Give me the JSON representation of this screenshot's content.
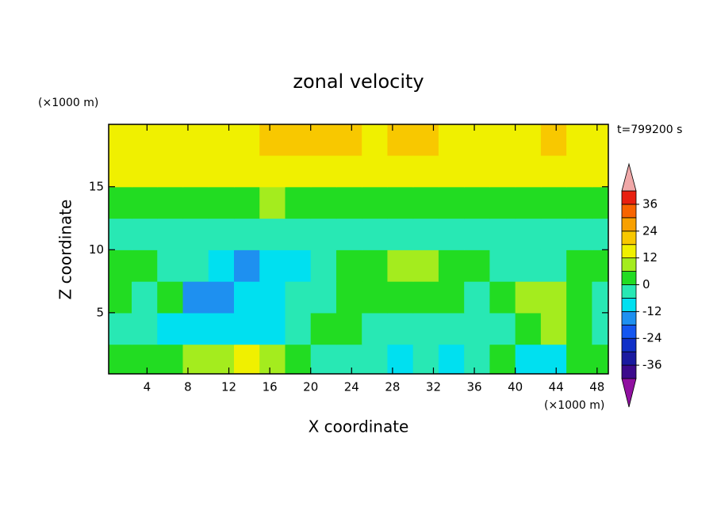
{
  "chart_data": {
    "type": "contour",
    "title": "zonal velocity",
    "x_label": "X coordinate",
    "y_label": "Z coordinate",
    "x_unit": "(×1000 m)",
    "y_unit": "(×1000 m)",
    "annotation": "t=799200 s",
    "x": [
      1.25,
      3.75,
      6.25,
      8.75,
      11.25,
      13.75,
      16.25,
      18.75,
      21.25,
      23.75,
      26.25,
      28.75,
      31.25,
      33.75,
      36.25,
      38.75,
      41.25,
      43.75,
      46.25,
      48.75
    ],
    "y": [
      1.25,
      3.75,
      6.25,
      8.75,
      11.25,
      13.75,
      16.25,
      18.75
    ],
    "values": [
      [
        2,
        3,
        5,
        8,
        10,
        12,
        8,
        3,
        -2,
        -3,
        -5,
        -8,
        -6,
        -10,
        -4,
        0,
        -12,
        -8,
        2,
        4
      ],
      [
        -5,
        -6,
        -8,
        -10,
        -9,
        -8,
        -7,
        -5,
        2,
        4,
        -2,
        -4,
        -3,
        -5,
        -3,
        -2,
        5,
        6,
        2,
        -3
      ],
      [
        0,
        -3,
        3,
        -16,
        -18,
        -12,
        -9,
        -6,
        -3,
        2,
        3,
        4,
        5,
        4,
        -2,
        2,
        8,
        9,
        4,
        -1
      ],
      [
        2,
        1,
        -3,
        -5,
        -9,
        -16,
        -12,
        -10,
        -2,
        3,
        5,
        7,
        8,
        4,
        1,
        -2,
        -2,
        -1,
        1,
        2
      ],
      [
        -4,
        -3,
        -2,
        -3,
        -2,
        -3,
        -3,
        -4,
        -3,
        -2,
        -3,
        -4,
        -3,
        -3,
        -2,
        -3,
        -4,
        -3,
        -2,
        -3
      ],
      [
        3,
        4,
        5,
        4,
        5,
        5,
        6,
        5,
        4,
        5,
        4,
        4,
        3,
        4,
        3,
        3,
        3,
        4,
        3,
        3
      ],
      [
        12,
        12,
        13,
        14,
        14,
        14,
        15,
        15,
        14,
        14,
        13,
        13,
        14,
        14,
        13,
        12,
        12,
        13,
        12,
        12
      ],
      [
        14,
        15,
        16,
        16,
        17,
        17,
        18,
        18,
        18,
        18,
        17,
        18,
        19,
        17,
        16,
        16,
        17,
        18,
        17,
        16
      ]
    ],
    "xlim": [
      0.25,
      49.1
    ],
    "ylim": [
      0.15,
      19.95
    ],
    "xticks": [
      4,
      8,
      12,
      16,
      20,
      24,
      28,
      32,
      36,
      40,
      44,
      48
    ],
    "yticks": [
      5,
      10,
      15
    ],
    "levels": [
      -42,
      -36,
      -30,
      -24,
      -18,
      -12,
      -6,
      0,
      6,
      12,
      18,
      24,
      30,
      36,
      42
    ],
    "colors": [
      "#3c0a8c",
      "#1a1aa0",
      "#1030c8",
      "#1456f0",
      "#1e90f0",
      "#00e0f0",
      "#28e8b4",
      "#22dc22",
      "#a4ec1e",
      "#f0f000",
      "#f8c800",
      "#f8a000",
      "#f86400",
      "#e82010"
    ],
    "extend_colors": [
      "#9010a0",
      "#f0a8a8"
    ],
    "cbar_ticks": [
      -36,
      -24,
      -12,
      0,
      12,
      24,
      36
    ]
  }
}
